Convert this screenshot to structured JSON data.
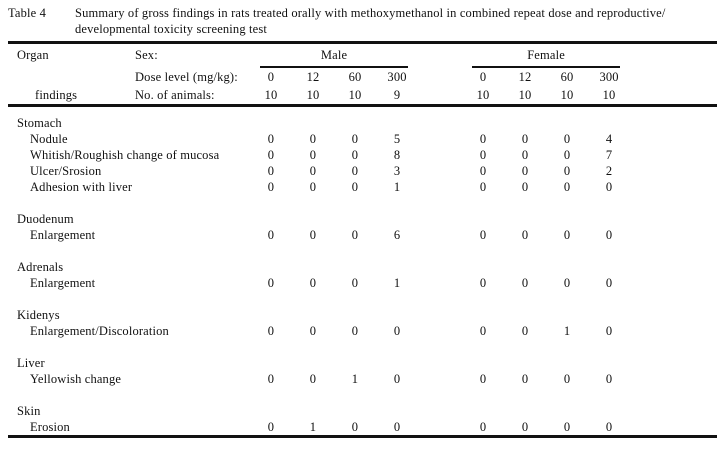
{
  "caption": {
    "label": "Table 4",
    "line1": "Summary of gross findings in rats treated orally with methoxymethanol in combined repeat dose and reproductive/",
    "line2": "developmental toxicity screening test"
  },
  "header": {
    "organ_label": "Organ",
    "findings_label": "findings",
    "sex_label": "Sex:",
    "dose_label": "Dose level (mg/kg):",
    "animals_label": "No. of animals:",
    "male": {
      "name": "Male",
      "doses": [
        "0",
        "12",
        "60",
        "300"
      ],
      "animals": [
        "10",
        "10",
        "10",
        "9"
      ]
    },
    "female": {
      "name": "Female",
      "doses": [
        "0",
        "12",
        "60",
        "300"
      ],
      "animals": [
        "10",
        "10",
        "10",
        "10"
      ]
    }
  },
  "sections": [
    {
      "organ": "Stomach",
      "rows": [
        {
          "finding": "Nodule",
          "male": [
            0,
            0,
            0,
            5
          ],
          "female": [
            0,
            0,
            0,
            4
          ]
        },
        {
          "finding": "Whitish/Roughish change of mucosa",
          "male": [
            0,
            0,
            0,
            8
          ],
          "female": [
            0,
            0,
            0,
            7
          ]
        },
        {
          "finding": "Ulcer/Srosion",
          "male": [
            0,
            0,
            0,
            3
          ],
          "female": [
            0,
            0,
            0,
            2
          ]
        },
        {
          "finding": "Adhesion with liver",
          "male": [
            0,
            0,
            0,
            1
          ],
          "female": [
            0,
            0,
            0,
            0
          ]
        }
      ]
    },
    {
      "organ": "Duodenum",
      "rows": [
        {
          "finding": "Enlargement",
          "male": [
            0,
            0,
            0,
            6
          ],
          "female": [
            0,
            0,
            0,
            0
          ]
        }
      ]
    },
    {
      "organ": "Adrenals",
      "rows": [
        {
          "finding": "Enlargement",
          "male": [
            0,
            0,
            0,
            1
          ],
          "female": [
            0,
            0,
            0,
            0
          ]
        }
      ]
    },
    {
      "organ": "Kidenys",
      "rows": [
        {
          "finding": "Enlargement/Discoloration",
          "male": [
            0,
            0,
            0,
            0
          ],
          "female": [
            0,
            0,
            1,
            0
          ]
        }
      ]
    },
    {
      "organ": "Liver",
      "rows": [
        {
          "finding": "Yellowish change",
          "male": [
            0,
            0,
            1,
            0
          ],
          "female": [
            0,
            0,
            0,
            0
          ]
        }
      ]
    },
    {
      "organ": "Skin",
      "rows": [
        {
          "finding": "Erosion",
          "male": [
            0,
            1,
            0,
            0
          ],
          "female": [
            0,
            0,
            0,
            0
          ]
        }
      ]
    }
  ],
  "colors": {
    "text": "#111111",
    "background": "#ffffff",
    "rule": "#111111"
  }
}
